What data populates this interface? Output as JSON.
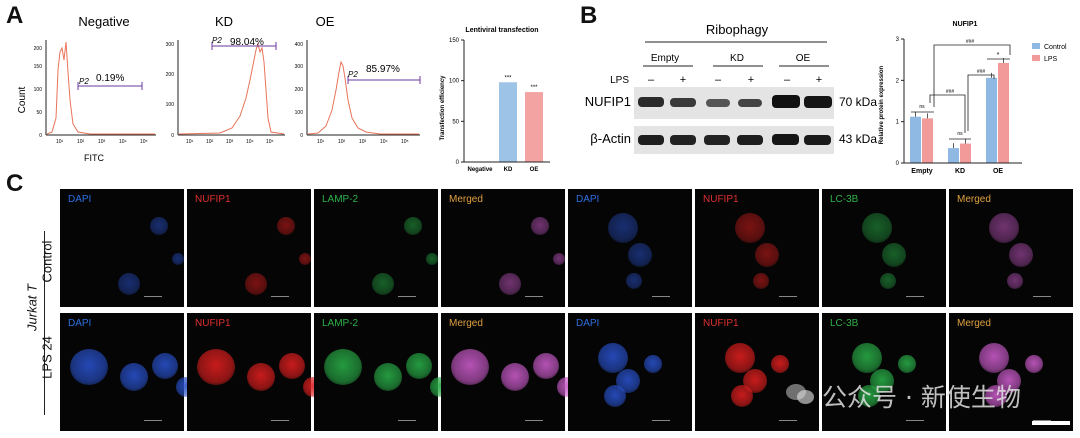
{
  "panelA": {
    "letter": "A",
    "flow": [
      {
        "title": "Negative",
        "gate": "P2",
        "pct": "0.19%"
      },
      {
        "title": "KD",
        "gate": "P2",
        "pct": "98.04%"
      },
      {
        "title": "OE",
        "gate": "P2",
        "pct": "85.97%"
      }
    ],
    "yaxis_label": "Count",
    "xaxis_label": "FITC",
    "yticks_neg": [
      "0",
      "50",
      "100",
      "150",
      "200"
    ],
    "yticks_kd": [
      "0",
      "100",
      "200",
      "300"
    ],
    "yticks_oe": [
      "0",
      "100",
      "200",
      "300",
      "400"
    ],
    "xticks": [
      "10¹",
      "10²",
      "10³",
      "10⁴",
      "10⁵"
    ]
  },
  "chart_data": [
    {
      "type": "bar",
      "title": "Lentiviral transfection",
      "ylabel": "Transfection efficiency",
      "categories": [
        "Negative",
        "KD",
        "OE"
      ],
      "values": [
        0.19,
        98.04,
        85.97
      ],
      "ylim": [
        0,
        150
      ],
      "yticks": [
        "0",
        "50",
        "100",
        "150"
      ],
      "colors": [
        "#9dc3e6",
        "#9dc3e6",
        "#f4a3a3"
      ],
      "sig": [
        "",
        "***",
        "***"
      ]
    },
    {
      "type": "bar",
      "title": "NUFIP1",
      "ylabel": "Relative protein expression",
      "categories": [
        "Empty",
        "KD",
        "OE"
      ],
      "ylim": [
        0,
        3
      ],
      "yticks": [
        "0",
        "1",
        "2",
        "3"
      ],
      "series": [
        {
          "name": "Control",
          "values": [
            1.12,
            0.36,
            2.06
          ],
          "color": "#8fb8e2"
        },
        {
          "name": "LPS",
          "values": [
            1.08,
            0.47,
            2.42
          ],
          "color": "#f29a9a"
        }
      ],
      "annotations": [
        "ns",
        "ns",
        "*",
        "###",
        "###",
        "###"
      ],
      "legend": "top-right"
    }
  ],
  "panelB": {
    "letter": "B",
    "header": "Ribophagy",
    "groups": [
      "Empty",
      "KD",
      "OE"
    ],
    "lps_label": "LPS",
    "lps_signs": [
      "–",
      "+",
      "–",
      "+",
      "–",
      "+"
    ],
    "rows": [
      {
        "name": "NUFIP1",
        "kda": "70 kDa"
      },
      {
        "name": "β-Actin",
        "kda": "43 kDa"
      }
    ]
  },
  "panelC": {
    "letter": "C",
    "cell_line": "Jurkat T",
    "rows": [
      "Control",
      "LPS 24"
    ],
    "columns": [
      {
        "label": "DAPI",
        "color": "#2f6fe0"
      },
      {
        "label": "NUFIP1",
        "color": "#e03030"
      },
      {
        "label": "LAMP-2",
        "color": "#2fb24a"
      },
      {
        "label": "Merged",
        "color": "#e0a040"
      },
      {
        "label": "DAPI",
        "color": "#2f6fe0"
      },
      {
        "label": "NUFIP1",
        "color": "#e03030"
      },
      {
        "label": "LC-3B",
        "color": "#2fb24a"
      },
      {
        "label": "Merged",
        "color": "#e0a040"
      }
    ]
  },
  "watermark": "公众号 · 新使生物"
}
